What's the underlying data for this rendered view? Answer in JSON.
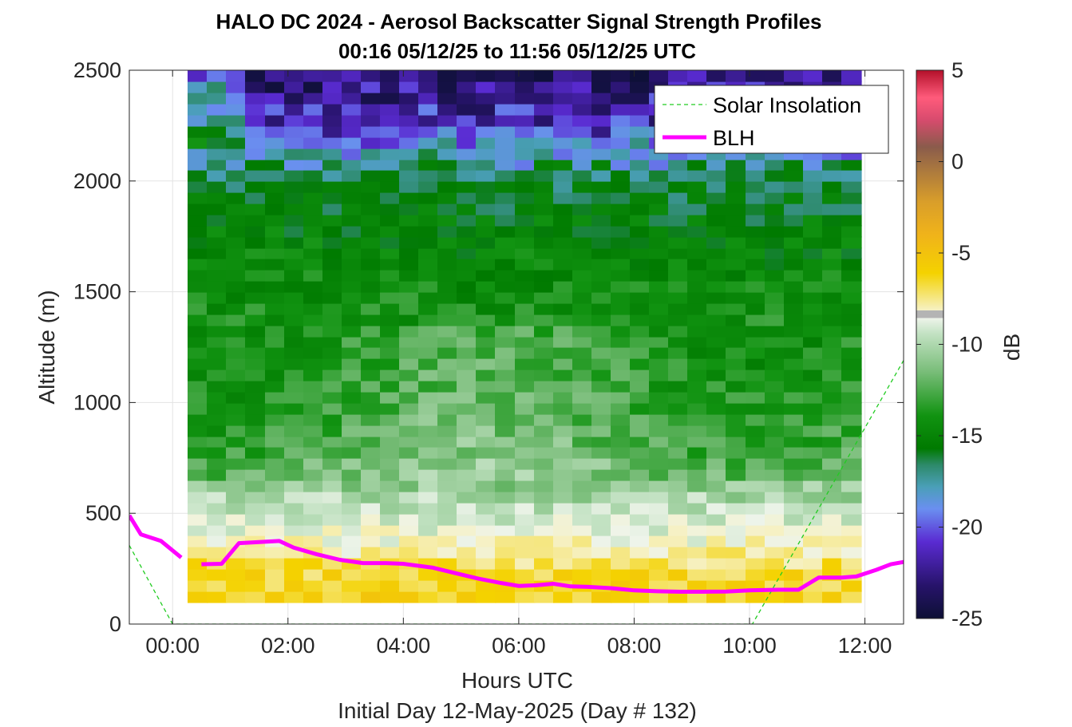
{
  "chart_data": {
    "type": "heatmap",
    "title_line1": "HALO DC 2024 - Aerosol Backscatter Signal Strength Profiles",
    "title_line2": "00:16 05/12/25 to 11:56 05/12/25  UTC",
    "xlabel": "Hours UTC",
    "subtitle": "Initial Day 12-May-2025 (Day # 132)",
    "ylabel": "Altitude (m)",
    "colorbar_label": "dB",
    "xlim": [
      -0.75,
      12.67
    ],
    "ylim": [
      0,
      2500
    ],
    "clim": [
      -25,
      5
    ],
    "x_ticks": [
      {
        "value": 0,
        "label": "00:00"
      },
      {
        "value": 2,
        "label": "02:00"
      },
      {
        "value": 4,
        "label": "04:00"
      },
      {
        "value": 6,
        "label": "06:00"
      },
      {
        "value": 8,
        "label": "08:00"
      },
      {
        "value": 10,
        "label": "10:00"
      },
      {
        "value": 12,
        "label": "12:00"
      }
    ],
    "y_ticks": [
      {
        "value": 0,
        "label": "0"
      },
      {
        "value": 500,
        "label": "500"
      },
      {
        "value": 1000,
        "label": "1000"
      },
      {
        "value": 1500,
        "label": "1500"
      },
      {
        "value": 2000,
        "label": "2000"
      },
      {
        "value": 2500,
        "label": "2500"
      }
    ],
    "colorbar_ticks": [
      {
        "value": 5,
        "label": "5"
      },
      {
        "value": 0,
        "label": "0"
      },
      {
        "value": -5,
        "label": "-5"
      },
      {
        "value": -10,
        "label": "-10"
      },
      {
        "value": -15,
        "label": "-15"
      },
      {
        "value": -20,
        "label": "-20"
      },
      {
        "value": -25,
        "label": "-25"
      }
    ],
    "grid": true,
    "legend_position": "top-right",
    "legend": [
      {
        "label": "Solar Insolation",
        "color": "#22cc22",
        "style": "dashed"
      },
      {
        "label": "BLH",
        "color": "#ff00ff",
        "style": "solid"
      }
    ],
    "heatmap": {
      "x_start": 0.27,
      "x_end": 11.93,
      "y_start": 100,
      "y_end": 2500,
      "n_cols": 35,
      "n_rows": 48,
      "dB_profile": [
        {
          "alt": 100,
          "dB": -6.0
        },
        {
          "alt": 250,
          "dB": -6.6
        },
        {
          "alt": 330,
          "dB": -7.8
        },
        {
          "alt": 420,
          "dB": -8.6
        },
        {
          "alt": 520,
          "dB": -9.6
        },
        {
          "alt": 650,
          "dB": -11.0
        },
        {
          "alt": 800,
          "dB": -12.2
        },
        {
          "alt": 1000,
          "dB": -12.8
        },
        {
          "alt": 1250,
          "dB": -13.3
        },
        {
          "alt": 1500,
          "dB": -14.3
        },
        {
          "alt": 1800,
          "dB": -15.2
        },
        {
          "alt": 2050,
          "dB": -16.6
        },
        {
          "alt": 2150,
          "dB": -18.6
        },
        {
          "alt": 2250,
          "dB": -20.8
        },
        {
          "alt": 2400,
          "dB": -22.3
        },
        {
          "alt": 2500,
          "dB": -23.0
        }
      ]
    },
    "blh_series": {
      "name": "BLH",
      "segments": [
        {
          "x": [
            -0.75,
            -0.55,
            -0.2,
            0.15
          ],
          "y": [
            490,
            405,
            375,
            300
          ]
        },
        {
          "x": [
            0.5,
            0.85,
            1.15,
            1.5,
            1.85,
            2.1,
            2.5,
            2.9,
            3.3,
            3.7,
            4.0,
            4.5,
            4.9,
            5.3,
            5.7,
            6.0,
            6.3,
            6.6,
            6.9,
            7.2,
            7.6,
            8.0,
            8.4,
            8.8,
            9.2,
            9.6,
            10.0,
            10.5,
            10.85,
            11.2,
            11.6,
            11.85,
            12.2,
            12.45,
            12.67
          ],
          "y": [
            270,
            272,
            365,
            370,
            375,
            345,
            315,
            290,
            275,
            275,
            272,
            255,
            230,
            205,
            185,
            172,
            175,
            182,
            170,
            168,
            162,
            152,
            148,
            146,
            146,
            147,
            152,
            155,
            155,
            210,
            210,
            215,
            245,
            270,
            280
          ]
        }
      ]
    },
    "solar_series": {
      "name": "Solar Insolation",
      "x": [
        -0.75,
        0.0,
        10.05,
        12.67
      ],
      "y": [
        355,
        0,
        0,
        1190
      ]
    }
  }
}
